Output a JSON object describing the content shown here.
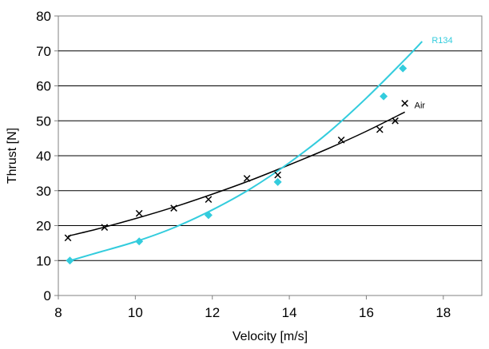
{
  "chart_data": {
    "type": "scatter",
    "title": "",
    "xlabel": "Velocity [m/s]",
    "ylabel": "Thrust [N]",
    "xlim": [
      8,
      19
    ],
    "ylim": [
      0,
      80
    ],
    "xticks": [
      8,
      10,
      12,
      14,
      16,
      18
    ],
    "yticks": [
      0,
      10,
      20,
      30,
      40,
      50,
      60,
      70,
      80
    ],
    "grid": "horizontal",
    "series": [
      {
        "name": "Air",
        "color": "#000000",
        "marker": "x",
        "points": [
          [
            8.25,
            16.5
          ],
          [
            9.2,
            19.5
          ],
          [
            10.1,
            23.5
          ],
          [
            11.0,
            25.0
          ],
          [
            11.9,
            27.5
          ],
          [
            12.9,
            33.5
          ],
          [
            13.7,
            34.5
          ],
          [
            15.35,
            44.5
          ],
          [
            16.35,
            47.5
          ],
          [
            16.75,
            50.0
          ],
          [
            17.0,
            55.0
          ]
        ],
        "trend": [
          [
            8.25,
            17.0
          ],
          [
            9.0,
            19.0
          ],
          [
            10.0,
            22.0
          ],
          [
            11.0,
            25.3
          ],
          [
            12.0,
            29.0
          ],
          [
            13.0,
            33.0
          ],
          [
            14.0,
            37.4
          ],
          [
            15.0,
            42.0
          ],
          [
            16.0,
            47.0
          ],
          [
            17.0,
            52.5
          ]
        ]
      },
      {
        "name": "R134",
        "color": "#33CCDD",
        "marker": "diamond",
        "points": [
          [
            8.3,
            10.0
          ],
          [
            10.1,
            15.5
          ],
          [
            11.9,
            23.0
          ],
          [
            13.7,
            32.5
          ],
          [
            16.45,
            57.0
          ],
          [
            16.95,
            65.0
          ]
        ],
        "trend": [
          [
            8.25,
            9.8
          ],
          [
            9.0,
            12.2
          ],
          [
            10.0,
            15.4
          ],
          [
            11.0,
            19.4
          ],
          [
            12.0,
            24.5
          ],
          [
            13.0,
            30.6
          ],
          [
            14.0,
            38.0
          ],
          [
            15.0,
            46.5
          ],
          [
            16.0,
            56.5
          ],
          [
            17.0,
            67.5
          ],
          [
            17.45,
            72.7
          ]
        ]
      }
    ]
  }
}
